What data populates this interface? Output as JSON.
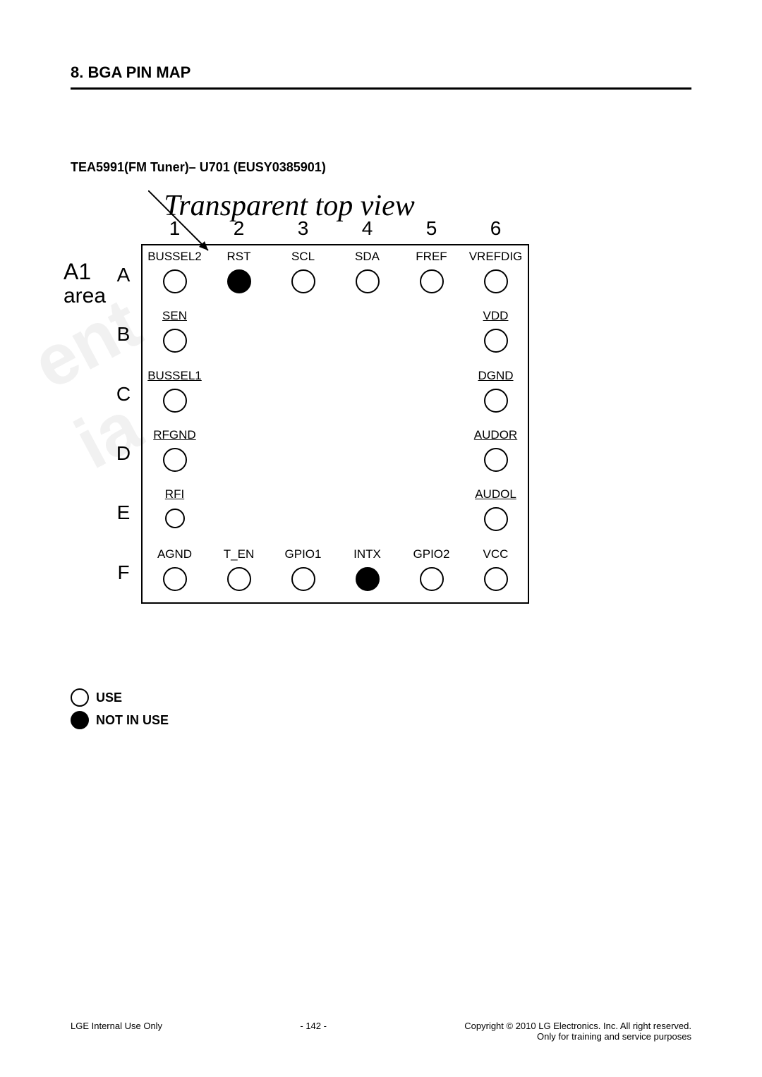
{
  "section_title": "8. BGA PIN MAP",
  "subtitle": "TEA5991(FM Tuner)– U701 (EUSY0385901)",
  "caption": "Transparent top view",
  "corner_marker": {
    "line1": "A1",
    "line2": "area"
  },
  "columns": [
    "1",
    "2",
    "3",
    "4",
    "5",
    "6"
  ],
  "rows": [
    "A",
    "B",
    "C",
    "D",
    "E",
    "F"
  ],
  "pins": {
    "A1": {
      "label": "BUSSEL2",
      "state": "use",
      "underline": false
    },
    "A2": {
      "label": "RST",
      "state": "notuse",
      "underline": false
    },
    "A3": {
      "label": "SCL",
      "state": "use",
      "underline": false
    },
    "A4": {
      "label": "SDA",
      "state": "use",
      "underline": false
    },
    "A5": {
      "label": "FREF",
      "state": "use",
      "underline": false
    },
    "A6": {
      "label": "VREFDIG",
      "state": "use",
      "underline": false
    },
    "B1": {
      "label": "SEN",
      "state": "use",
      "underline": true
    },
    "B6": {
      "label": "VDD",
      "state": "use",
      "underline": true
    },
    "C1": {
      "label": "BUSSEL1",
      "state": "use",
      "underline": true
    },
    "C6": {
      "label": "DGND",
      "state": "use",
      "underline": true
    },
    "D1": {
      "label": "RFGND",
      "state": "use",
      "underline": true
    },
    "D6": {
      "label": "AUDOR",
      "state": "use",
      "underline": true
    },
    "E1": {
      "label": "RFI",
      "state": "use",
      "underline": true,
      "small": true
    },
    "E6": {
      "label": "AUDOL",
      "state": "use",
      "underline": true
    },
    "F1": {
      "label": "AGND",
      "state": "use",
      "underline": false
    },
    "F2": {
      "label": "T_EN",
      "state": "use",
      "underline": false
    },
    "F3": {
      "label": "GPIO1",
      "state": "use",
      "underline": false
    },
    "F4": {
      "label": "INTX",
      "state": "notuse",
      "underline": false
    },
    "F5": {
      "label": "GPIO2",
      "state": "use",
      "underline": false
    },
    "F6": {
      "label": "VCC",
      "state": "use",
      "underline": false
    }
  },
  "legend": {
    "use": "USE",
    "notuse": "NOT IN USE"
  },
  "footer": {
    "left": "LGE Internal Use Only",
    "center": "- 142 -",
    "right1": "Copyright © 2010 LG Electronics. Inc. All right reserved.",
    "right2": "Only for training and service purposes"
  },
  "colors": {
    "text": "#000000",
    "bg": "#ffffff",
    "border": "#000000"
  }
}
